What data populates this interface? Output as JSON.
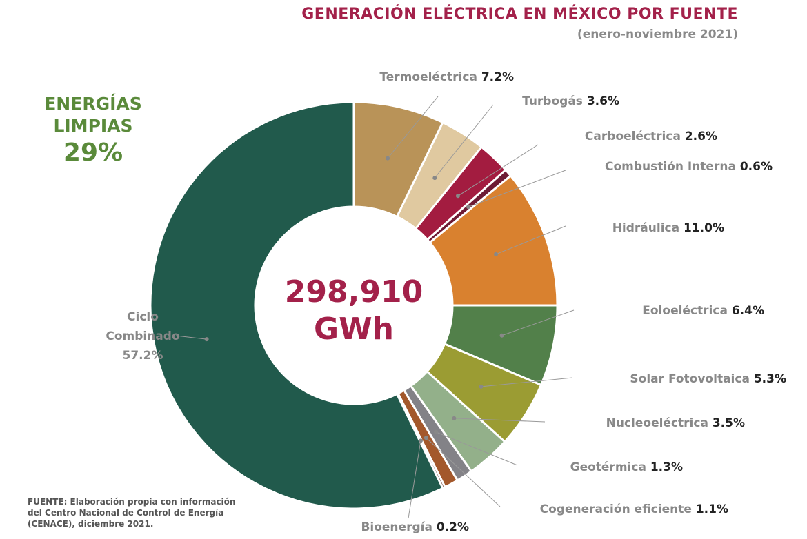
{
  "header": {
    "title": "GENERACIÓN ELÉCTRICA EN MÉXICO POR FUENTE",
    "subtitle": "(enero-noviembre 2021)"
  },
  "clean_energy": {
    "label_line1": "ENERGÍAS",
    "label_line2": "LIMPIAS",
    "value": "29%"
  },
  "source": {
    "line1": "FUENTE:  Elaboración propia con información",
    "line2": "del Centro Nacional de Control de Energía",
    "line3": "(CENACE), diciembre 2021."
  },
  "chart_data": {
    "type": "pie",
    "subtype": "donut",
    "title": "GENERACIÓN ELÉCTRICA EN MÉXICO POR FUENTE",
    "subtitle": "(enero-noviembre 2021)",
    "center_label": {
      "value": "298,910",
      "unit": "GWh"
    },
    "unit": "%",
    "slices": [
      {
        "name": "Termoeléctrica",
        "value": 7.2,
        "label": "7.2%",
        "color": "#b99358"
      },
      {
        "name": "Turbogás",
        "value": 3.6,
        "label": "3.6%",
        "color": "#e0c9a0"
      },
      {
        "name": "Carboeléctrica",
        "value": 2.6,
        "label": "2.6%",
        "color": "#a31c40"
      },
      {
        "name": "Combustión Interna",
        "value": 0.6,
        "label": "0.6%",
        "color": "#6e1b34"
      },
      {
        "name": "Hidráulica",
        "value": 11.0,
        "label": "11.0%",
        "color": "#d9812f"
      },
      {
        "name": "Eoloeléctrica",
        "value": 6.4,
        "label": "6.4%",
        "color": "#52804a"
      },
      {
        "name": "Solar Fotovoltaica",
        "value": 5.3,
        "label": "5.3%",
        "color": "#9b9c33"
      },
      {
        "name": "Nucleoeléctrica",
        "value": 3.5,
        "label": "3.5%",
        "color": "#93b08a"
      },
      {
        "name": "Geotérmica",
        "value": 1.3,
        "label": "1.3%",
        "color": "#838287"
      },
      {
        "name": "Cogeneración eficiente",
        "value": 1.1,
        "label": "1.1%",
        "color": "#a3582b"
      },
      {
        "name": "Bioenergía",
        "value": 0.2,
        "label": "0.2%",
        "color": "#6a3a2a"
      },
      {
        "name": "Ciclo Combinado",
        "value": 57.2,
        "label": "57.2%",
        "color": "#215a4c"
      }
    ]
  }
}
